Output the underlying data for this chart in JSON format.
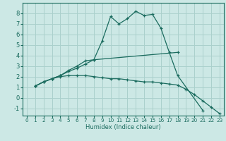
{
  "background_color": "#cce8e5",
  "grid_color": "#aad0cc",
  "line_color": "#1a6b5e",
  "xlabel": "Humidex (Indice chaleur)",
  "xlim": [
    -0.5,
    23.5
  ],
  "ylim": [
    -1.7,
    9.0
  ],
  "yticks": [
    -1,
    0,
    1,
    2,
    3,
    4,
    5,
    6,
    7,
    8
  ],
  "xticks": [
    0,
    1,
    2,
    3,
    4,
    5,
    6,
    7,
    8,
    9,
    10,
    11,
    12,
    13,
    14,
    15,
    16,
    17,
    18,
    19,
    20,
    21,
    22,
    23
  ],
  "lines": [
    {
      "x": [
        1,
        2,
        3,
        4,
        5,
        6,
        7,
        8,
        9,
        10,
        11,
        12,
        13,
        14,
        15,
        16,
        17,
        18,
        21
      ],
      "y": [
        1.1,
        1.5,
        1.8,
        2.1,
        2.6,
        3.0,
        3.5,
        3.6,
        5.4,
        7.7,
        7.0,
        7.5,
        8.2,
        7.8,
        7.9,
        6.6,
        4.3,
        2.1,
        -1.2
      ]
    },
    {
      "x": [
        1,
        2,
        3,
        4,
        5,
        6,
        7,
        8,
        18
      ],
      "y": [
        1.1,
        1.5,
        1.8,
        2.1,
        2.5,
        2.8,
        3.2,
        3.6,
        4.3
      ]
    },
    {
      "x": [
        1,
        2,
        3,
        4,
        5,
        6,
        7,
        8,
        9,
        10,
        11,
        12,
        13,
        14,
        15,
        16,
        17,
        18,
        19,
        20,
        21,
        22,
        23
      ],
      "y": [
        1.1,
        1.5,
        1.8,
        2.0,
        2.1,
        2.1,
        2.1,
        2.0,
        1.9,
        1.8,
        1.8,
        1.7,
        1.6,
        1.5,
        1.5,
        1.4,
        1.3,
        1.2,
        0.8,
        0.3,
        -0.3,
        -0.9,
        -1.5
      ]
    }
  ]
}
